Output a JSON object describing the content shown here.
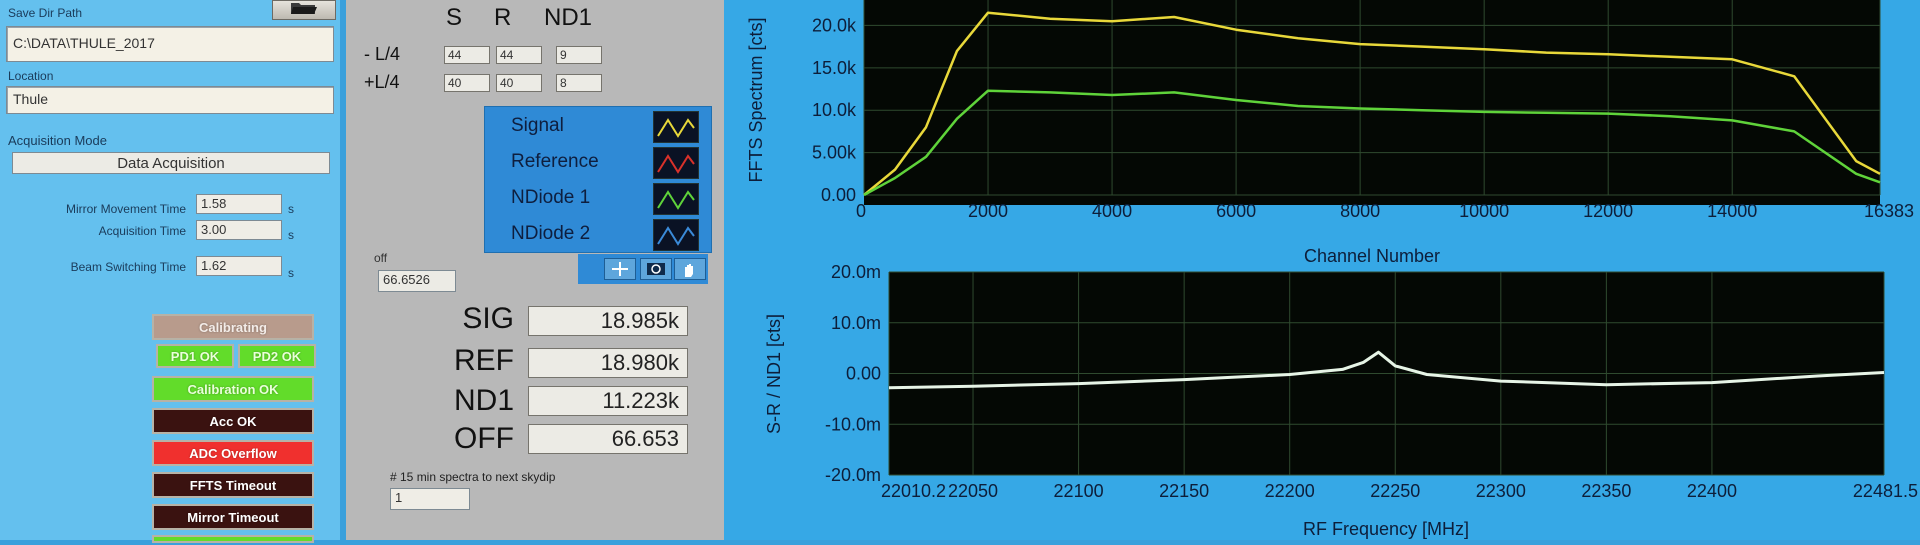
{
  "left": {
    "save_dir_label": "Save Dir Path",
    "save_dir_value": "C:\\DATA\\THULE_2017",
    "location_label": "Location",
    "location_value": "Thule",
    "acq_mode_label": "Acquisition Mode",
    "acq_mode_value": "Data Acquisition",
    "mirror_time_label": "Mirror Movement Time",
    "mirror_time_value": "1.58",
    "acq_time_label": "Acquisition Time",
    "acq_time_value": "3.00",
    "beam_time_label": "Beam Switching Time",
    "beam_time_value": "1.62",
    "unit_s": "s",
    "indicators": {
      "calibrating": "Calibrating",
      "pd1_ok": "PD1 OK",
      "pd2_ok": "PD2 OK",
      "calibration_ok": "Calibration OK",
      "acc_ok": "Acc OK",
      "adc_overflow": "ADC Overflow",
      "ffts_timeout": "FFTS Timeout",
      "mirror_timeout": "Mirror Timeout"
    }
  },
  "table": {
    "headers": [
      "S",
      "R",
      "ND1"
    ],
    "rows": [
      {
        "label": "- L/4",
        "values": [
          "44",
          "44",
          "9"
        ]
      },
      {
        "label": "+L/4",
        "values": [
          "40",
          "40",
          "8"
        ]
      }
    ]
  },
  "legend": {
    "items": [
      {
        "name": "Signal",
        "color": "#e8d83a"
      },
      {
        "name": "Reference",
        "color": "#d8312a"
      },
      {
        "name": "NDiode 1",
        "color": "#5fd33a"
      },
      {
        "name": "NDiode 2",
        "color": "#3a8ad8"
      }
    ]
  },
  "off_label": "off",
  "off_value": "66.6526",
  "readouts": {
    "sig_label": "SIG",
    "sig_value": "18.985k",
    "ref_label": "REF",
    "ref_value": "18.980k",
    "nd1_label": "ND1",
    "nd1_value": "11.223k",
    "off_label": "OFF",
    "off_value": "66.653"
  },
  "skydip_label": "# 15 min spectra to next skydip",
  "skydip_value": "1",
  "chart_data": [
    {
      "type": "line",
      "title": "",
      "xlabel": "Channel Number",
      "ylabel": "FFTS Spectrum [cts]",
      "xlim": [
        0,
        16383
      ],
      "ylim": [
        0,
        23000
      ],
      "x_ticks": [
        "0",
        "2000",
        "4000",
        "6000",
        "8000",
        "10000",
        "12000",
        "14000",
        "16383"
      ],
      "y_ticks": [
        "0.00",
        "5.00k",
        "10.0k",
        "15.0k",
        "20.0k"
      ],
      "series": [
        {
          "name": "Signal",
          "x": [
            0,
            500,
            1000,
            1500,
            2000,
            3000,
            4000,
            5000,
            6000,
            7000,
            8000,
            9000,
            10000,
            11000,
            12000,
            13000,
            14000,
            15000,
            16000,
            16383
          ],
          "values": [
            0,
            3000,
            8000,
            17000,
            21500,
            20800,
            20500,
            21000,
            19500,
            18500,
            17800,
            17500,
            17200,
            16800,
            16600,
            16300,
            16000,
            14000,
            4000,
            2500
          ]
        },
        {
          "name": "NDiode 1",
          "x": [
            0,
            500,
            1000,
            1500,
            2000,
            3000,
            4000,
            5000,
            6000,
            7000,
            8000,
            9000,
            10000,
            11000,
            12000,
            13000,
            14000,
            15000,
            16000,
            16383
          ],
          "values": [
            0,
            2000,
            4500,
            9000,
            12300,
            12100,
            11800,
            12100,
            11200,
            10500,
            10200,
            10000,
            9800,
            9700,
            9600,
            9300,
            8800,
            7500,
            2500,
            1500
          ]
        }
      ]
    },
    {
      "type": "line",
      "title": "",
      "xlabel": "RF Frequency [MHz]",
      "ylabel": "S-R / ND1 [cts]",
      "xlim": [
        22010.2,
        22481.5
      ],
      "ylim": [
        -0.02,
        0.02
      ],
      "x_ticks": [
        "22010.2",
        "22050",
        "22100",
        "22150",
        "22200",
        "22250",
        "22300",
        "22350",
        "22400",
        "22481.5"
      ],
      "y_ticks": [
        "-20.0m",
        "-10.0m",
        "0.00",
        "10.0m",
        "20.0m"
      ],
      "series": [
        {
          "name": "",
          "x": [
            22010.2,
            22050,
            22100,
            22150,
            22200,
            22225,
            22235,
            22242,
            22250,
            22265,
            22300,
            22350,
            22400,
            22450,
            22481.5
          ],
          "values": [
            -0.0028,
            -0.0025,
            -0.002,
            -0.0012,
            -0.0002,
            0.0008,
            0.0022,
            0.0042,
            0.0015,
            -0.0002,
            -0.0015,
            -0.0022,
            -0.0018,
            -0.0005,
            0.0002
          ]
        }
      ]
    }
  ]
}
